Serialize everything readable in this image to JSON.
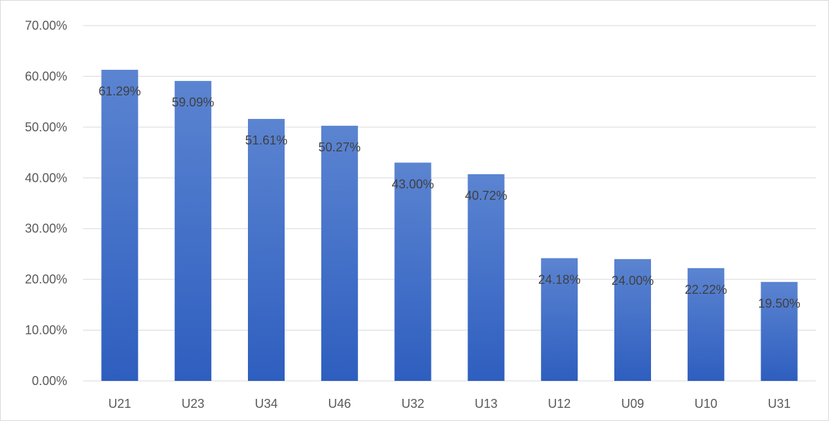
{
  "chart_data": {
    "type": "bar",
    "title": "",
    "xlabel": "",
    "ylabel": "",
    "categories": [
      "U21",
      "U23",
      "U34",
      "U46",
      "U32",
      "U13",
      "U12",
      "U09",
      "U10",
      "U31"
    ],
    "values": [
      61.29,
      59.09,
      51.61,
      50.27,
      43.0,
      40.72,
      24.18,
      24.0,
      22.22,
      19.5
    ],
    "value_labels": [
      "61.29%",
      "59.09%",
      "51.61%",
      "50.27%",
      "43.00%",
      "40.72%",
      "24.18%",
      "24.00%",
      "22.22%",
      "19.50%"
    ],
    "y_ticks": [
      0,
      10,
      20,
      30,
      40,
      50,
      60,
      70
    ],
    "y_tick_labels": [
      "0.00%",
      "10.00%",
      "20.00%",
      "30.00%",
      "40.00%",
      "50.00%",
      "60.00%",
      "70.00%"
    ],
    "ylim": [
      0,
      70
    ],
    "grid": true,
    "legend": "none",
    "colors": {
      "bar_top": "#5B84D1",
      "bar_bottom": "#2E5EBF",
      "grid": "#d9d9d9",
      "text": "#595959"
    }
  }
}
